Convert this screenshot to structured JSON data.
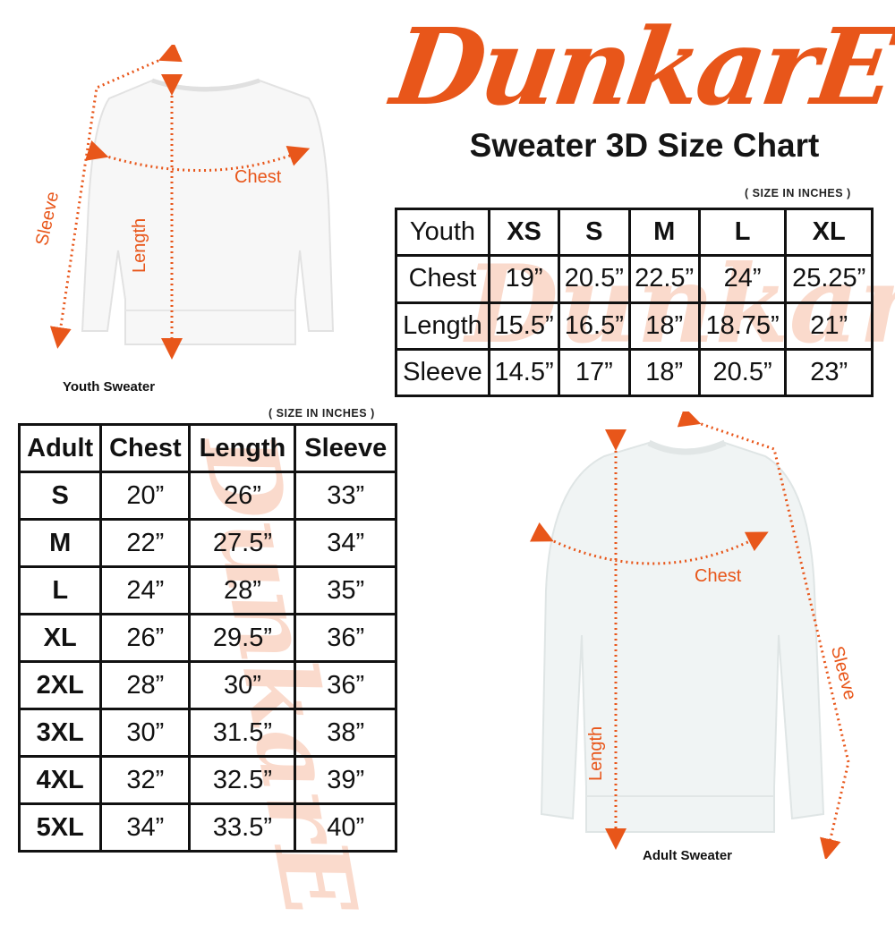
{
  "brand": {
    "logo_text": "DunkarE",
    "color": "#e8561a"
  },
  "title": "Sweater 3D Size Chart",
  "youth": {
    "caption": "Youth Sweater",
    "unit_note": "( SIZE IN INCHES )",
    "labels": {
      "chest": "Chest",
      "length": "Length",
      "sleeve": "Sleeve"
    },
    "header": [
      "Youth",
      "XS",
      "S",
      "M",
      "L",
      "XL"
    ],
    "rows": [
      [
        "Chest",
        "19”",
        "20.5”",
        "22.5”",
        "24”",
        "25.25”"
      ],
      [
        "Length",
        "15.5”",
        "16.5”",
        "18”",
        "18.75”",
        "21”"
      ],
      [
        "Sleeve",
        "14.5”",
        "17”",
        "18”",
        "20.5”",
        "23”"
      ]
    ]
  },
  "adult": {
    "caption": "Adult Sweater",
    "unit_note": "( SIZE IN INCHES )",
    "labels": {
      "chest": "Chest",
      "length": "Length",
      "sleeve": "Sleeve"
    },
    "header": [
      "Adult",
      "Chest",
      "Length",
      "Sleeve"
    ],
    "rows": [
      [
        "S",
        "20”",
        "26”",
        "33”"
      ],
      [
        "M",
        "22”",
        "27.5”",
        "34”"
      ],
      [
        "L",
        "24”",
        "28”",
        "35”"
      ],
      [
        "XL",
        "26”",
        "29.5”",
        "36”"
      ],
      [
        "2XL",
        "28”",
        "30”",
        "36”"
      ],
      [
        "3XL",
        "30”",
        "31.5”",
        "38”"
      ],
      [
        "4XL",
        "32”",
        "32.5”",
        "39”"
      ],
      [
        "5XL",
        "34”",
        "33.5”",
        "40”"
      ]
    ]
  }
}
